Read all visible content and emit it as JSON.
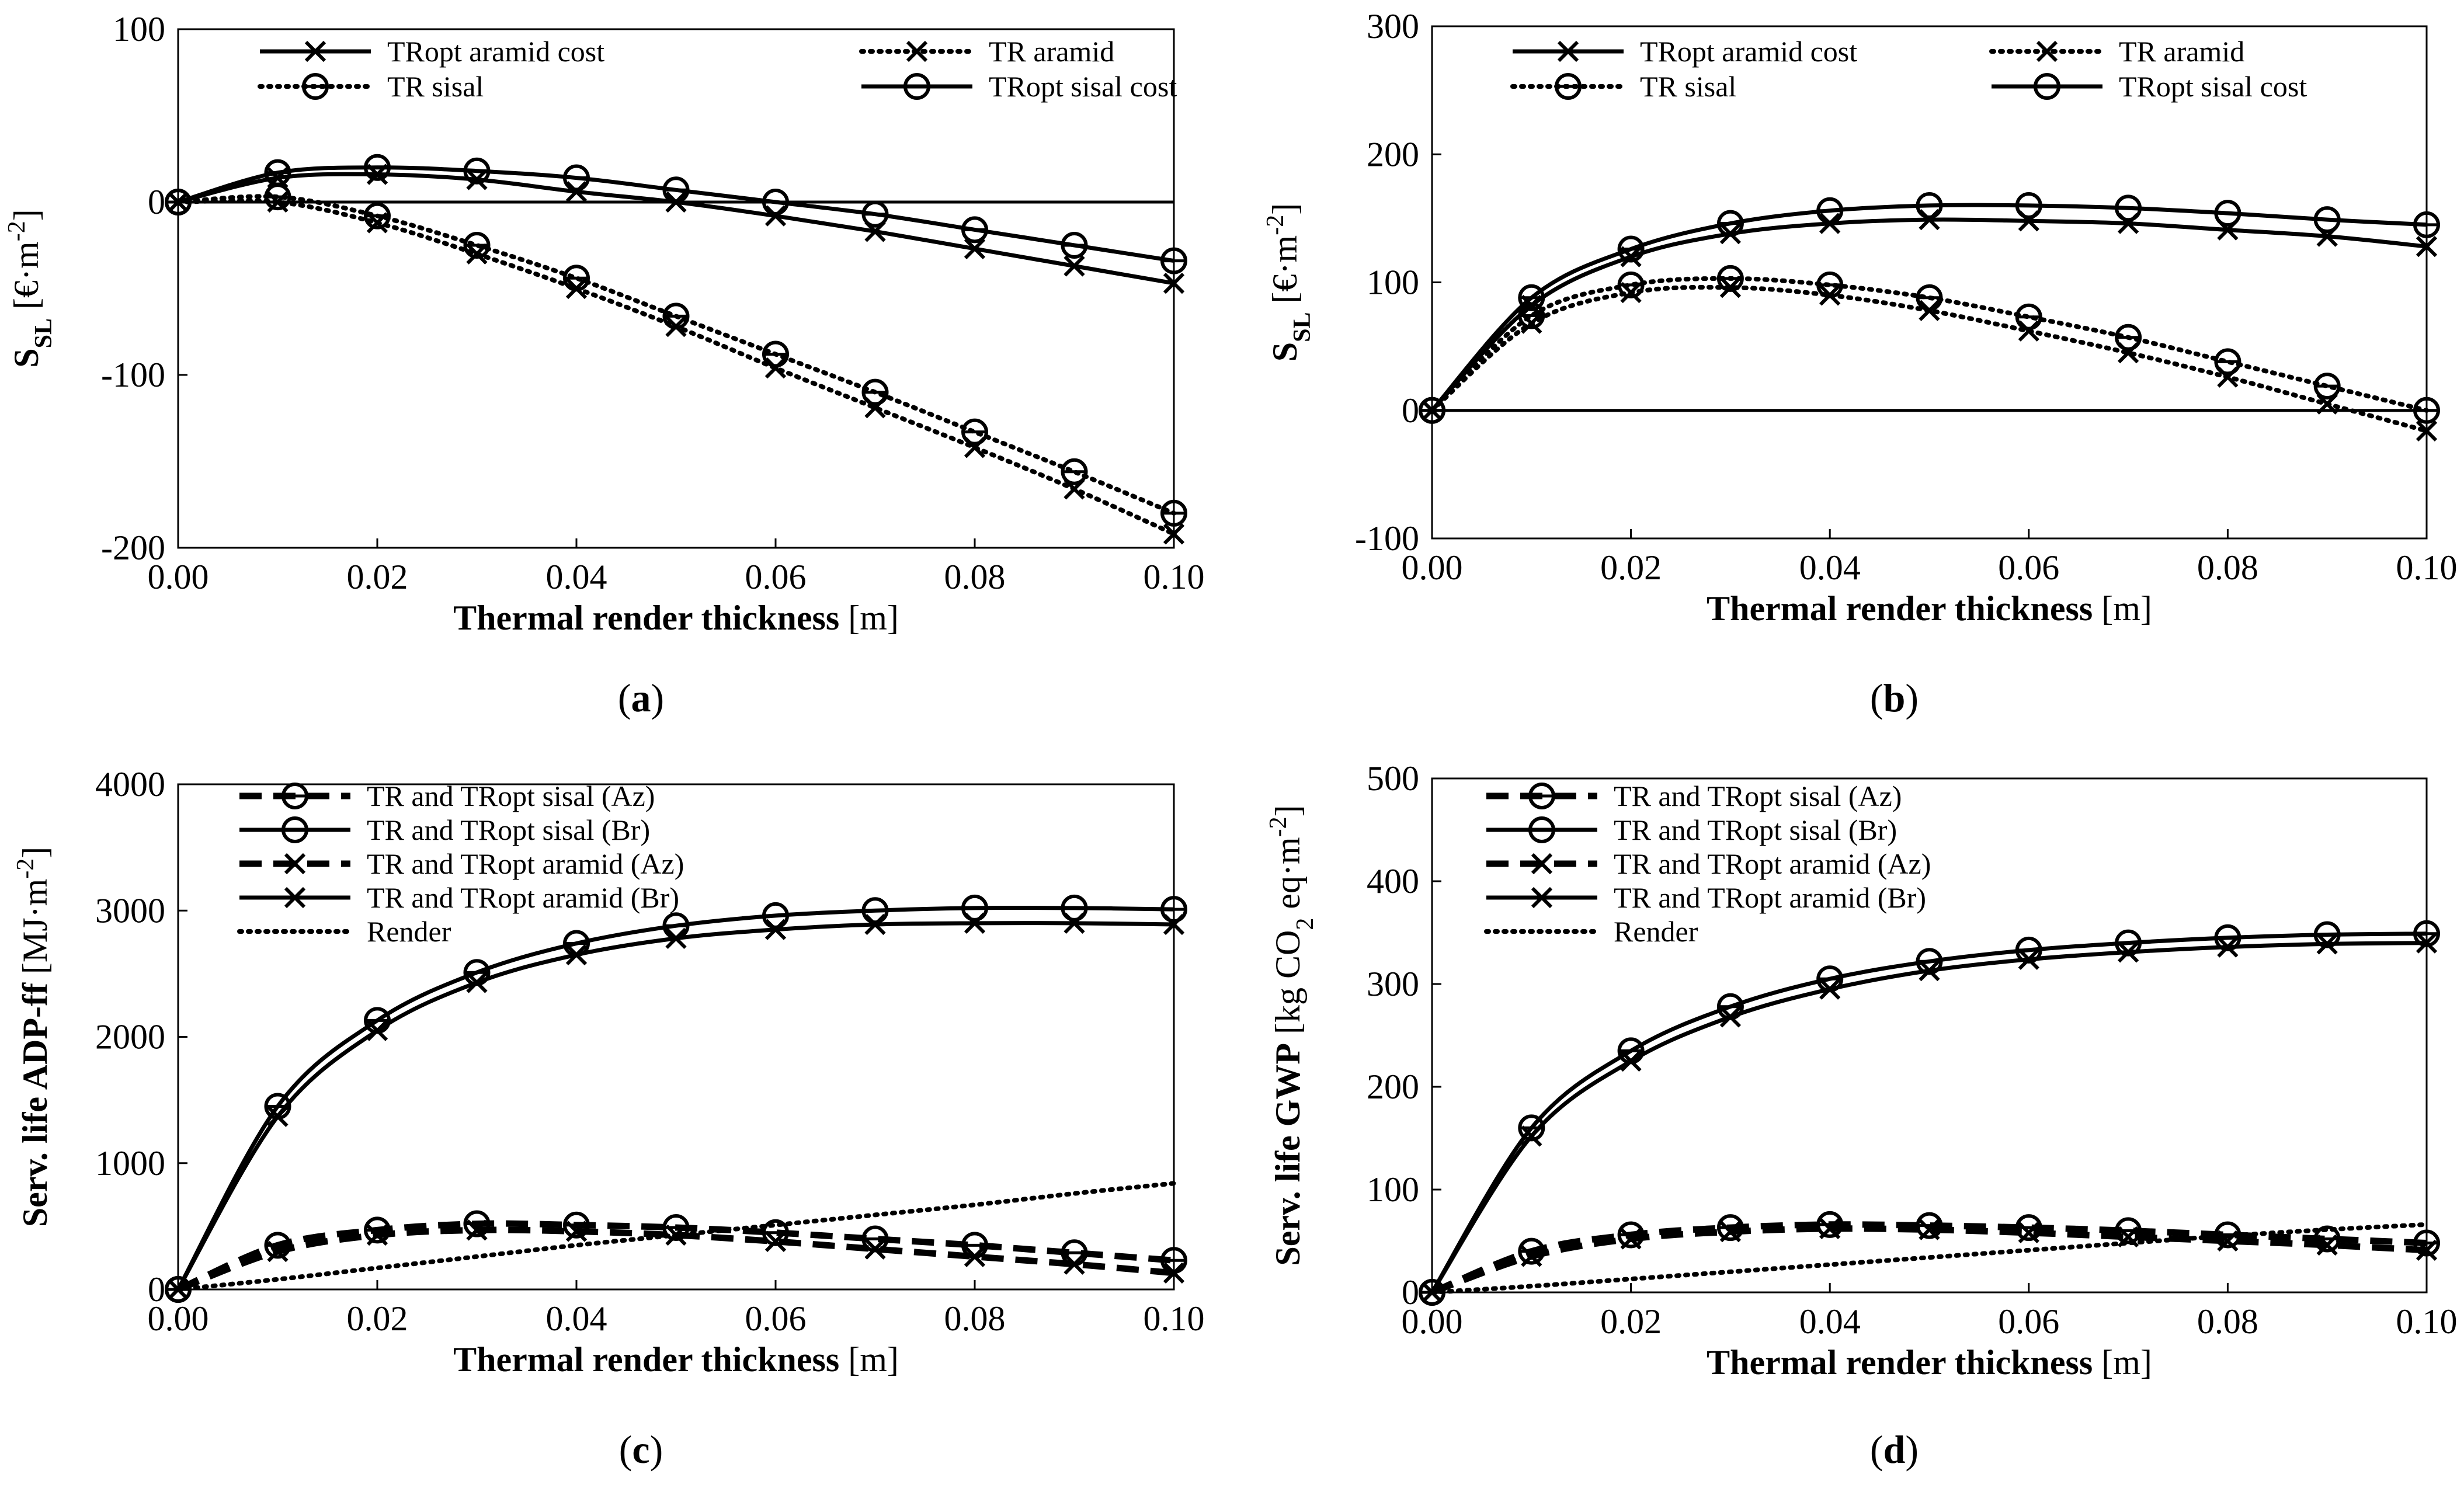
{
  "chart_data": [
    {
      "type": "line",
      "panel": "a",
      "panel_label": [
        "(",
        "a",
        ")"
      ],
      "ylabel": "",
      "ylabel_parts": [
        {
          "t": "S",
          "b": true
        },
        {
          "t": "SL",
          "b": true,
          "sub": true
        },
        {
          "t": " [€·m",
          "b": false
        },
        {
          "t": "-2",
          "b": false,
          "sup": true
        },
        {
          "t": "]",
          "b": false
        }
      ],
      "xlabel": "",
      "xlabel_parts": [
        {
          "t": "Thermal render thickness",
          "b": true
        },
        {
          "t": " [m]",
          "b": false
        }
      ],
      "xlim": [
        0,
        0.1
      ],
      "ylim": [
        -200,
        100
      ],
      "xticks": [
        0,
        0.02,
        0.04,
        0.06,
        0.08,
        0.1
      ],
      "xtick_labels": [
        "0.00",
        "0.02",
        "0.04",
        "0.06",
        "0.08",
        "0.10"
      ],
      "yticks": [
        -200,
        -100,
        0,
        100
      ],
      "ytick_labels": [
        "-200",
        "-100",
        "0",
        "100"
      ],
      "zero_line": true,
      "legend_columns": 2,
      "x": [
        0,
        0.01,
        0.02,
        0.03,
        0.04,
        0.05,
        0.06,
        0.07,
        0.08,
        0.09,
        0.1
      ],
      "series": [
        {
          "name": "TRopt aramid cost",
          "style": "solid",
          "marker": "x",
          "values": [
            0,
            14,
            16,
            13,
            6,
            0,
            -8,
            -17,
            -27,
            -37,
            -47
          ]
        },
        {
          "name": "TR aramid",
          "style": "dotted",
          "marker": "x",
          "values": [
            0,
            0,
            -12,
            -30,
            -50,
            -72,
            -96,
            -119,
            -142,
            -166,
            -192
          ]
        },
        {
          "name": "TR sisal",
          "style": "dotted",
          "marker": "o",
          "values": [
            0,
            3,
            -8,
            -25,
            -44,
            -66,
            -88,
            -110,
            -133,
            -156,
            -180
          ]
        },
        {
          "name": "TRopt sisal cost",
          "style": "solid",
          "marker": "o",
          "values": [
            0,
            17,
            20,
            18,
            14,
            7,
            0,
            -7,
            -16,
            -25,
            -34
          ]
        }
      ]
    },
    {
      "type": "line",
      "panel": "b",
      "panel_label": [
        "(",
        "b",
        ")"
      ],
      "ylabel": "",
      "ylabel_parts": [
        {
          "t": "S",
          "b": true
        },
        {
          "t": "SL",
          "b": true,
          "sub": true
        },
        {
          "t": " [€·m",
          "b": false
        },
        {
          "t": "-2",
          "b": false,
          "sup": true
        },
        {
          "t": "]",
          "b": false
        }
      ],
      "xlabel": "",
      "xlabel_parts": [
        {
          "t": "Thermal render thickness",
          "b": true
        },
        {
          "t": " [m]",
          "b": false
        }
      ],
      "xlim": [
        0,
        0.1
      ],
      "ylim": [
        -100,
        300
      ],
      "xticks": [
        0,
        0.02,
        0.04,
        0.06,
        0.08,
        0.1
      ],
      "xtick_labels": [
        "0.00",
        "0.02",
        "0.04",
        "0.06",
        "0.08",
        "0.10"
      ],
      "yticks": [
        -100,
        0,
        100,
        200,
        300
      ],
      "ytick_labels": [
        "-100",
        "0",
        "100",
        "200",
        "300"
      ],
      "zero_line": true,
      "legend_columns": 2,
      "x": [
        0,
        0.01,
        0.02,
        0.03,
        0.04,
        0.05,
        0.06,
        0.07,
        0.08,
        0.09,
        0.1
      ],
      "series": [
        {
          "name": "TRopt aramid cost",
          "style": "solid",
          "marker": "x",
          "values": [
            0,
            82,
            120,
            138,
            146,
            149,
            148,
            146,
            141,
            136,
            128
          ]
        },
        {
          "name": "TR aramid",
          "style": "dotted",
          "marker": "x",
          "values": [
            0,
            68,
            92,
            96,
            90,
            78,
            62,
            45,
            26,
            5,
            -16
          ]
        },
        {
          "name": "TR sisal",
          "style": "dotted",
          "marker": "o",
          "values": [
            0,
            74,
            98,
            103,
            98,
            88,
            73,
            57,
            38,
            19,
            0
          ]
        },
        {
          "name": "TRopt sisal cost",
          "style": "solid",
          "marker": "o",
          "values": [
            0,
            88,
            126,
            146,
            156,
            160,
            160,
            158,
            154,
            149,
            145
          ]
        }
      ]
    },
    {
      "type": "line",
      "panel": "c",
      "panel_label": [
        "(",
        "c",
        ")"
      ],
      "ylabel": "",
      "ylabel_parts": [
        {
          "t": "Serv. life ADP-ff",
          "b": true
        },
        {
          "t": " [MJ·m",
          "b": false
        },
        {
          "t": "-2",
          "b": false,
          "sup": true
        },
        {
          "t": "]",
          "b": false
        }
      ],
      "xlabel": "",
      "xlabel_parts": [
        {
          "t": "Thermal render thickness",
          "b": true
        },
        {
          "t": " [m]",
          "b": false
        }
      ],
      "xlim": [
        0,
        0.1
      ],
      "ylim": [
        0,
        4000
      ],
      "xticks": [
        0,
        0.02,
        0.04,
        0.06,
        0.08,
        0.1
      ],
      "xtick_labels": [
        "0.00",
        "0.02",
        "0.04",
        "0.06",
        "0.08",
        "0.10"
      ],
      "yticks": [
        0,
        1000,
        2000,
        3000,
        4000
      ],
      "ytick_labels": [
        "0",
        "1000",
        "2000",
        "3000",
        "4000"
      ],
      "zero_line": false,
      "legend_columns": 1,
      "x": [
        0,
        0.01,
        0.02,
        0.03,
        0.04,
        0.05,
        0.06,
        0.07,
        0.08,
        0.09,
        0.1
      ],
      "series": [
        {
          "name": "TR and TRopt sisal (Az)",
          "style": "dashed",
          "marker": "o",
          "values": [
            0,
            350,
            470,
            520,
            510,
            490,
            450,
            400,
            350,
            290,
            230
          ]
        },
        {
          "name": "TR and TRopt sisal (Br)",
          "style": "solid",
          "marker": "o",
          "values": [
            0,
            1450,
            2130,
            2510,
            2740,
            2880,
            2960,
            3000,
            3020,
            3020,
            3010
          ]
        },
        {
          "name": "TR and TRopt aramid (Az)",
          "style": "dashed",
          "marker": "x",
          "values": [
            0,
            300,
            430,
            470,
            460,
            430,
            380,
            320,
            260,
            200,
            130
          ]
        },
        {
          "name": "TR and TRopt aramid (Br)",
          "style": "solid",
          "marker": "x",
          "values": [
            0,
            1370,
            2050,
            2430,
            2650,
            2780,
            2850,
            2890,
            2900,
            2900,
            2890
          ]
        },
        {
          "name": "Render",
          "style": "dotted",
          "marker": "none",
          "values": [
            0,
            80,
            170,
            260,
            350,
            430,
            510,
            590,
            670,
            760,
            840
          ]
        }
      ]
    },
    {
      "type": "line",
      "panel": "d",
      "panel_label": [
        "(",
        "d",
        ")"
      ],
      "ylabel": "",
      "ylabel_parts": [
        {
          "t": "Serv. life GWP",
          "b": true
        },
        {
          "t": " [kg CO",
          "b": false
        },
        {
          "t": "2",
          "b": false,
          "sub": true
        },
        {
          "t": " eq·m",
          "b": false
        },
        {
          "t": "-2",
          "b": false,
          "sup": true
        },
        {
          "t": "]",
          "b": false
        }
      ],
      "xlabel": "",
      "xlabel_parts": [
        {
          "t": "Thermal render thickness",
          "b": true
        },
        {
          "t": " [m]",
          "b": false
        }
      ],
      "xlim": [
        0,
        0.1
      ],
      "ylim": [
        0,
        500
      ],
      "xticks": [
        0,
        0.02,
        0.04,
        0.06,
        0.08,
        0.1
      ],
      "xtick_labels": [
        "0.00",
        "0.02",
        "0.04",
        "0.06",
        "0.08",
        "0.10"
      ],
      "yticks": [
        0,
        100,
        200,
        300,
        400,
        500
      ],
      "ytick_labels": [
        "0",
        "100",
        "200",
        "300",
        "400",
        "500"
      ],
      "zero_line": false,
      "legend_columns": 1,
      "x": [
        0,
        0.01,
        0.02,
        0.03,
        0.04,
        0.05,
        0.06,
        0.07,
        0.08,
        0.09,
        0.1
      ],
      "series": [
        {
          "name": "TR and TRopt sisal (Az)",
          "style": "dashed",
          "marker": "o",
          "values": [
            0,
            40,
            56,
            63,
            66,
            65,
            63,
            60,
            56,
            52,
            48
          ]
        },
        {
          "name": "TR and TRopt sisal (Br)",
          "style": "solid",
          "marker": "o",
          "values": [
            0,
            160,
            235,
            278,
            305,
            322,
            333,
            340,
            345,
            348,
            349
          ]
        },
        {
          "name": "TR and TRopt aramid (Az)",
          "style": "dashed",
          "marker": "x",
          "values": [
            0,
            35,
            52,
            59,
            62,
            61,
            58,
            54,
            50,
            46,
            41
          ]
        },
        {
          "name": "TR and TRopt aramid (Br)",
          "style": "solid",
          "marker": "x",
          "values": [
            0,
            152,
            225,
            268,
            295,
            313,
            324,
            331,
            336,
            339,
            340
          ]
        },
        {
          "name": "Render",
          "style": "dotted",
          "marker": "none",
          "values": [
            0,
            6,
            13,
            20,
            27,
            34,
            41,
            48,
            55,
            61,
            66
          ]
        }
      ]
    }
  ]
}
